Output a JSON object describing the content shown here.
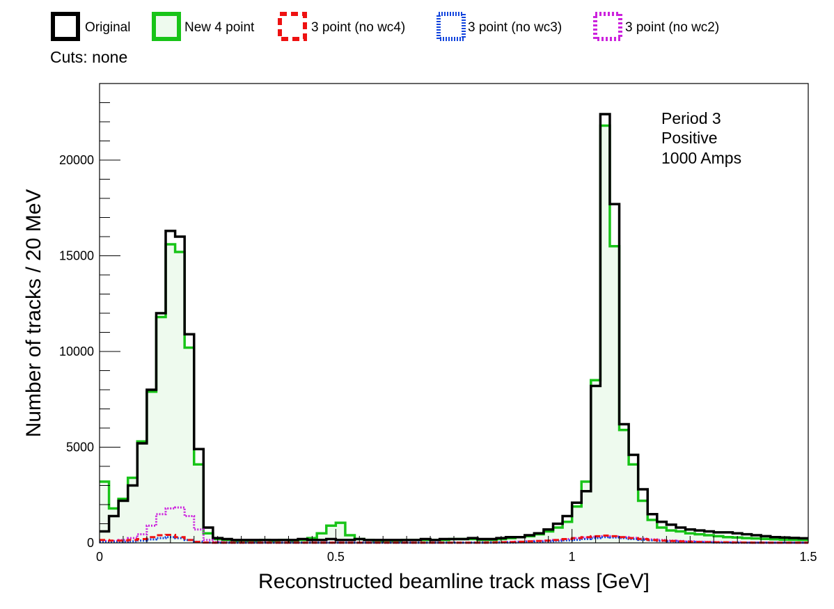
{
  "chart_data": {
    "type": "line",
    "style": "step-histogram",
    "xlabel": "Reconstructed beamline track mass [GeV]",
    "ylabel": "Number of tracks / 20 MeV",
    "xlim": [
      0,
      1.5
    ],
    "ylim": [
      0,
      24000
    ],
    "bin_width": 0.02,
    "x_ticks": [
      0,
      0.5,
      1,
      1.5
    ],
    "x_tick_labels": [
      "0",
      "0.5",
      "1",
      "1.5"
    ],
    "y_ticks": [
      0,
      5000,
      10000,
      15000,
      20000
    ],
    "y_tick_labels": [
      "0",
      "5000",
      "10000",
      "15000",
      "20000"
    ],
    "cuts_label": "Cuts: none",
    "annotations": [
      "Period 3",
      "Positive",
      "1000 Amps"
    ],
    "legend_placement": "top, above plot",
    "grid": false,
    "series": [
      {
        "name": "Original",
        "color": "#000000",
        "dash": "solid",
        "fill": false,
        "values": [
          600,
          1400,
          2200,
          3000,
          5200,
          8000,
          12000,
          16300,
          16000,
          10900,
          4900,
          800,
          250,
          200,
          150,
          150,
          150,
          150,
          150,
          150,
          150,
          200,
          150,
          150,
          200,
          150,
          150,
          200,
          150,
          150,
          150,
          150,
          150,
          150,
          200,
          150,
          200,
          200,
          200,
          250,
          200,
          200,
          250,
          300,
          300,
          400,
          500,
          700,
          1000,
          1400,
          2100,
          2700,
          8200,
          22400,
          17700,
          6200,
          4600,
          2800,
          1500,
          1100,
          950,
          800,
          700,
          650,
          600,
          550,
          550,
          500,
          450,
          400,
          350,
          300,
          280,
          260,
          240
        ]
      },
      {
        "name": "New 4 point",
        "color": "#18c418",
        "dash": "solid",
        "fill": true,
        "values": [
          3200,
          1800,
          2300,
          3400,
          5300,
          7900,
          11800,
          15600,
          15200,
          10200,
          4100,
          500,
          200,
          150,
          100,
          100,
          100,
          150,
          100,
          150,
          100,
          150,
          250,
          500,
          900,
          1050,
          400,
          200,
          150,
          100,
          100,
          100,
          150,
          150,
          150,
          150,
          150,
          200,
          200,
          200,
          150,
          150,
          200,
          250,
          300,
          350,
          450,
          600,
          800,
          1100,
          1900,
          3200,
          8500,
          21800,
          15500,
          5900,
          4100,
          2200,
          1200,
          800,
          650,
          600,
          500,
          450,
          400,
          350,
          300,
          280,
          250,
          230,
          210,
          190,
          170,
          160,
          150
        ]
      },
      {
        "name": "3 point (no wc4)",
        "color": "#ee1111",
        "dash": "dashed",
        "fill": false,
        "values": [
          150,
          120,
          120,
          150,
          200,
          300,
          400,
          420,
          300,
          150,
          50,
          20,
          10,
          10,
          10,
          10,
          10,
          10,
          10,
          10,
          10,
          10,
          10,
          10,
          10,
          10,
          10,
          10,
          10,
          10,
          10,
          10,
          10,
          10,
          10,
          10,
          10,
          10,
          10,
          10,
          10,
          20,
          30,
          40,
          60,
          80,
          100,
          120,
          150,
          200,
          250,
          300,
          350,
          380,
          350,
          300,
          250,
          200,
          150,
          120,
          100,
          80,
          60,
          50,
          40,
          30,
          30,
          20,
          20,
          10,
          10,
          10,
          10,
          10,
          10
        ]
      },
      {
        "name": "3 point (no wc3)",
        "color": "#1144dd",
        "dash": "dotted",
        "fill": false,
        "values": [
          50,
          50,
          60,
          80,
          120,
          180,
          250,
          300,
          250,
          150,
          60,
          20,
          10,
          10,
          10,
          10,
          10,
          10,
          10,
          10,
          10,
          10,
          10,
          10,
          10,
          10,
          10,
          10,
          10,
          10,
          10,
          10,
          10,
          10,
          10,
          10,
          10,
          10,
          10,
          10,
          10,
          10,
          20,
          20,
          30,
          40,
          60,
          80,
          100,
          130,
          160,
          200,
          250,
          300,
          280,
          250,
          200,
          160,
          130,
          100,
          80,
          60,
          50,
          40,
          30,
          20,
          20,
          10,
          10,
          10,
          10,
          10,
          10,
          10,
          10
        ]
      },
      {
        "name": "3 point (no wc2)",
        "color": "#cc22dd",
        "dash": "dotted",
        "fill": false,
        "values": [
          100,
          100,
          150,
          250,
          450,
          900,
          1500,
          1800,
          1850,
          1400,
          700,
          150,
          50,
          30,
          20,
          20,
          20,
          20,
          20,
          20,
          20,
          20,
          20,
          20,
          20,
          20,
          20,
          20,
          20,
          20,
          20,
          20,
          20,
          20,
          20,
          20,
          20,
          20,
          20,
          20,
          30,
          30,
          40,
          50,
          60,
          80,
          100,
          120,
          150,
          200,
          250,
          280,
          320,
          350,
          330,
          300,
          260,
          220,
          180,
          150,
          120,
          100,
          80,
          60,
          50,
          40,
          30,
          30,
          20,
          20,
          20,
          10,
          10,
          10,
          10
        ]
      }
    ]
  }
}
